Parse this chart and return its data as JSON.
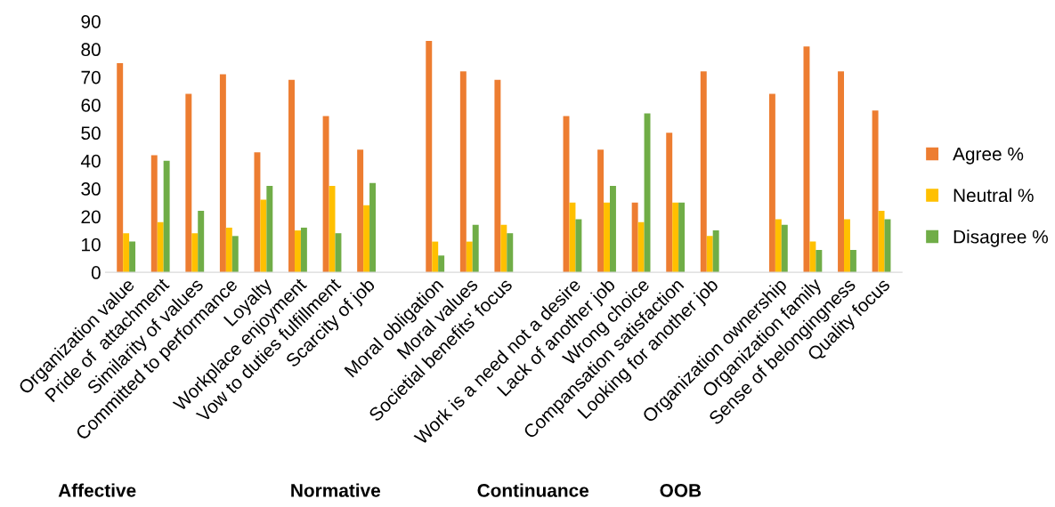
{
  "chart_data": {
    "type": "bar",
    "categories": [
      "Organization value",
      "Pride of  attachment",
      "Similarity of values",
      "Committed to performance",
      "Loyalty",
      "Workplace enjoyment",
      "Vow to duties fulfillment",
      "Scarcity of job",
      null,
      "Moral obligation",
      "Moral values",
      "Societial benefits' focus",
      null,
      "Work is a need not a desire",
      "Lack of another job",
      "Wrong choice",
      "Compansation satisfaction",
      "Looking for another job",
      null,
      "Organization ownership",
      "Organization family",
      "Sense of belongingness",
      "Quality focus"
    ],
    "series": [
      {
        "name": "Agree %",
        "color": "#ed7d31",
        "values": [
          75,
          42,
          64,
          71,
          43,
          69,
          56,
          44,
          null,
          83,
          72,
          69,
          null,
          56,
          44,
          25,
          50,
          72,
          null,
          64,
          81,
          72,
          58
        ]
      },
      {
        "name": "Neutral %",
        "color": "#ffc000",
        "values": [
          14,
          18,
          14,
          16,
          26,
          15,
          31,
          24,
          null,
          11,
          11,
          17,
          null,
          25,
          25,
          18,
          25,
          13,
          null,
          19,
          11,
          19,
          22
        ]
      },
      {
        "name": "Disagree %",
        "color": "#70ad47",
        "values": [
          11,
          40,
          22,
          13,
          31,
          16,
          14,
          32,
          null,
          6,
          17,
          14,
          null,
          19,
          31,
          57,
          25,
          15,
          null,
          17,
          8,
          8,
          19
        ]
      }
    ],
    "ylim": [
      0,
      90
    ],
    "yticks": [
      0,
      10,
      20,
      30,
      40,
      50,
      60,
      70,
      80,
      90
    ],
    "grid": false,
    "legend": "right",
    "annotations": [
      "Affective",
      "Normative",
      "Continuance",
      "OOB"
    ]
  }
}
